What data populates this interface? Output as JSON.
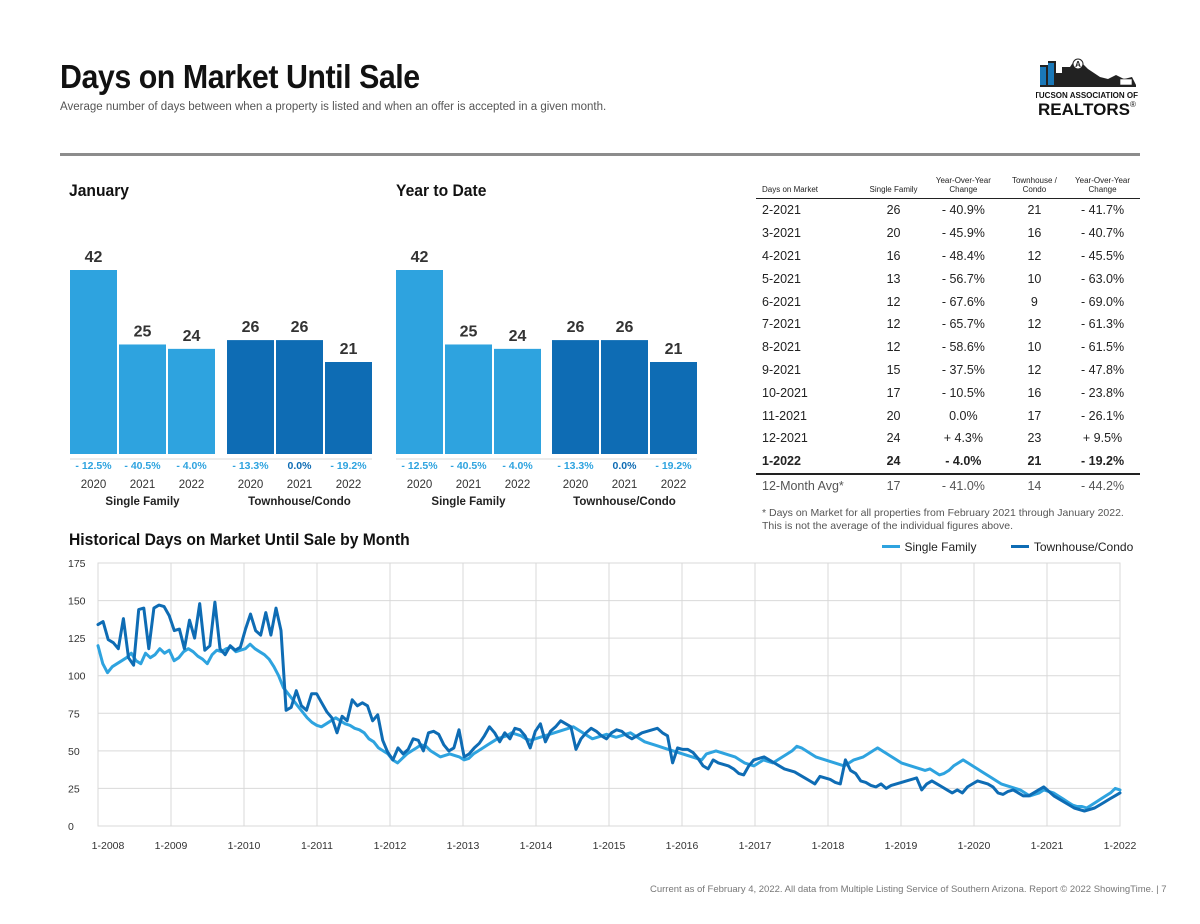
{
  "header": {
    "title": "Days on Market Until Sale",
    "subtitle": "Average number of days between when a property is listed and when an offer is accepted in a given month.",
    "logo_line1": "TUCSON ASSOCIATION OF",
    "logo_line2": "REALTORS",
    "logo_reg": "®",
    "logo_letter": "A"
  },
  "colors": {
    "single_family": "#2ea3df",
    "townhouse": "#0e6cb4",
    "negative": "#2ea3df",
    "accent_grey": "#8c8c8c"
  },
  "chart_data": [
    {
      "type": "bar",
      "title": "January",
      "groups": [
        {
          "label": "Single Family",
          "categories": [
            "2020",
            "2021",
            "2022"
          ],
          "values": [
            42,
            25,
            24
          ],
          "changes": [
            "- 12.5%",
            "- 40.5%",
            "- 4.0%"
          ]
        },
        {
          "label": "Townhouse/Condo",
          "categories": [
            "2020",
            "2021",
            "2022"
          ],
          "values": [
            26,
            26,
            21
          ],
          "changes": [
            "- 13.3%",
            "0.0%",
            "- 19.2%"
          ]
        }
      ]
    },
    {
      "type": "bar",
      "title": "Year to Date",
      "groups": [
        {
          "label": "Single Family",
          "categories": [
            "2020",
            "2021",
            "2022"
          ],
          "values": [
            42,
            25,
            24
          ],
          "changes": [
            "- 12.5%",
            "- 40.5%",
            "- 4.0%"
          ]
        },
        {
          "label": "Townhouse/Condo",
          "categories": [
            "2020",
            "2021",
            "2022"
          ],
          "values": [
            26,
            26,
            21
          ],
          "changes": [
            "- 13.3%",
            "0.0%",
            "- 19.2%"
          ]
        }
      ]
    },
    {
      "type": "table",
      "headers": [
        "Days on Market",
        "Single Family",
        "Year-Over-Year Change",
        "Townhouse / Condo",
        "Year-Over-Year Change"
      ],
      "rows": [
        [
          "2-2021",
          "26",
          "- 40.9%",
          "21",
          "- 41.7%"
        ],
        [
          "3-2021",
          "20",
          "- 45.9%",
          "16",
          "- 40.7%"
        ],
        [
          "4-2021",
          "16",
          "- 48.4%",
          "12",
          "- 45.5%"
        ],
        [
          "5-2021",
          "13",
          "- 56.7%",
          "10",
          "- 63.0%"
        ],
        [
          "6-2021",
          "12",
          "- 67.6%",
          "9",
          "- 69.0%"
        ],
        [
          "7-2021",
          "12",
          "- 65.7%",
          "12",
          "- 61.3%"
        ],
        [
          "8-2021",
          "12",
          "- 58.6%",
          "10",
          "- 61.5%"
        ],
        [
          "9-2021",
          "15",
          "- 37.5%",
          "12",
          "- 47.8%"
        ],
        [
          "10-2021",
          "17",
          "- 10.5%",
          "16",
          "- 23.8%"
        ],
        [
          "11-2021",
          "20",
          "0.0%",
          "17",
          "- 26.1%"
        ],
        [
          "12-2021",
          "24",
          "+ 4.3%",
          "23",
          "+ 9.5%"
        ],
        [
          "1-2022",
          "24",
          "- 4.0%",
          "21",
          "- 19.2%"
        ]
      ],
      "average_row": [
        "12-Month Avg*",
        "17",
        "- 41.0%",
        "14",
        "- 44.2%"
      ],
      "footnote": "* Days on Market for all properties from February 2021 through January 2022. This is not the average of the individual figures above."
    },
    {
      "type": "line",
      "title": "Historical Days on Market Until Sale by Month",
      "ylim": [
        0,
        175
      ],
      "yticks": [
        0,
        25,
        50,
        75,
        100,
        125,
        150,
        175
      ],
      "x_tick_labels": [
        "1-2008",
        "1-2009",
        "1-2010",
        "1-2011",
        "1-2012",
        "1-2013",
        "1-2014",
        "1-2015",
        "1-2016",
        "1-2017",
        "1-2018",
        "1-2019",
        "1-2020",
        "1-2021",
        "1-2022"
      ],
      "grid": true,
      "legend_position": "top-right",
      "series": [
        {
          "name": "Single Family",
          "color": "#2ea3df",
          "values": [
            120,
            108,
            102,
            106,
            108,
            110,
            112,
            115,
            110,
            108,
            115,
            112,
            114,
            118,
            115,
            117,
            110,
            112,
            116,
            118,
            116,
            113,
            111,
            108,
            114,
            117,
            116,
            118,
            119,
            116,
            117,
            118,
            121,
            118,
            116,
            114,
            111,
            106,
            100,
            92,
            88,
            84,
            80,
            76,
            72,
            69,
            67,
            66,
            68,
            70,
            72,
            70,
            68,
            67,
            65,
            64,
            62,
            58,
            56,
            52,
            50,
            48,
            44,
            42,
            45,
            48,
            50,
            52,
            54,
            53,
            50,
            48,
            46,
            47,
            48,
            47,
            46,
            44,
            45,
            48,
            50,
            52,
            54,
            56,
            58,
            59,
            60,
            62,
            61,
            60,
            58,
            57,
            58,
            59,
            60,
            61,
            62,
            63,
            64,
            65,
            66,
            64,
            62,
            60,
            58,
            59,
            60,
            61,
            60,
            59,
            60,
            61,
            62,
            60,
            58,
            56,
            55,
            54,
            53,
            52,
            51,
            50,
            49,
            48,
            47,
            46,
            45,
            44,
            48,
            49,
            50,
            49,
            48,
            47,
            46,
            44,
            42,
            41,
            40,
            42,
            44,
            43,
            42,
            44,
            46,
            48,
            50,
            53,
            52,
            50,
            48,
            46,
            45,
            44,
            43,
            42,
            41,
            40,
            42,
            44,
            45,
            46,
            48,
            50,
            52,
            50,
            48,
            46,
            44,
            42,
            41,
            40,
            39,
            38,
            37,
            38,
            36,
            34,
            35,
            37,
            40,
            42,
            44,
            42,
            40,
            38,
            36,
            34,
            32,
            30,
            28,
            27,
            26,
            25,
            24,
            22,
            20,
            21,
            22,
            24,
            23,
            22,
            20,
            18,
            16,
            14,
            13,
            13,
            12,
            14,
            16,
            18,
            20,
            22,
            25,
            24
          ]
        },
        {
          "name": "Townhouse/Condo",
          "color": "#0e6cb4",
          "values": [
            134,
            136,
            124,
            122,
            118,
            138,
            112,
            107,
            144,
            145,
            118,
            145,
            147,
            146,
            140,
            130,
            131,
            118,
            137,
            125,
            148,
            117,
            120,
            149,
            118,
            114,
            120,
            117,
            119,
            131,
            141,
            130,
            127,
            142,
            127,
            145,
            130,
            77,
            79,
            90,
            80,
            77,
            88,
            88,
            82,
            76,
            72,
            62,
            73,
            70,
            84,
            80,
            82,
            80,
            70,
            74,
            57,
            49,
            44,
            52,
            48,
            51,
            58,
            57,
            50,
            62,
            63,
            61,
            54,
            50,
            52,
            64,
            46,
            48,
            52,
            55,
            60,
            66,
            62,
            56,
            62,
            58,
            65,
            64,
            60,
            52,
            63,
            68,
            56,
            63,
            66,
            70,
            68,
            66,
            51,
            58,
            62,
            65,
            63,
            60,
            58,
            62,
            64,
            63,
            60,
            58,
            60,
            62,
            63,
            64,
            65,
            62,
            60,
            42,
            52,
            51,
            51,
            49,
            45,
            40,
            38,
            44,
            42,
            41,
            40,
            38,
            35,
            34,
            40,
            44,
            45,
            46,
            44,
            42,
            40,
            38,
            37,
            36,
            34,
            32,
            30,
            28,
            33,
            32,
            31,
            29,
            28,
            44,
            37,
            35,
            30,
            29,
            27,
            26,
            28,
            25,
            27,
            28,
            29,
            30,
            31,
            32,
            24,
            28,
            30,
            28,
            26,
            24,
            22,
            24,
            22,
            26,
            28,
            30,
            29,
            28,
            26,
            22,
            21,
            23,
            24,
            22,
            20,
            20,
            22,
            24,
            26,
            23,
            20,
            18,
            16,
            14,
            12,
            11,
            10,
            11,
            12,
            14,
            16,
            18,
            20,
            22
          ]
        }
      ]
    }
  ],
  "footer": "Current as of February 4, 2022. All data from Multiple Listing Service of Southern Arizona. Report © 2022 ShowingTime.  |  7"
}
